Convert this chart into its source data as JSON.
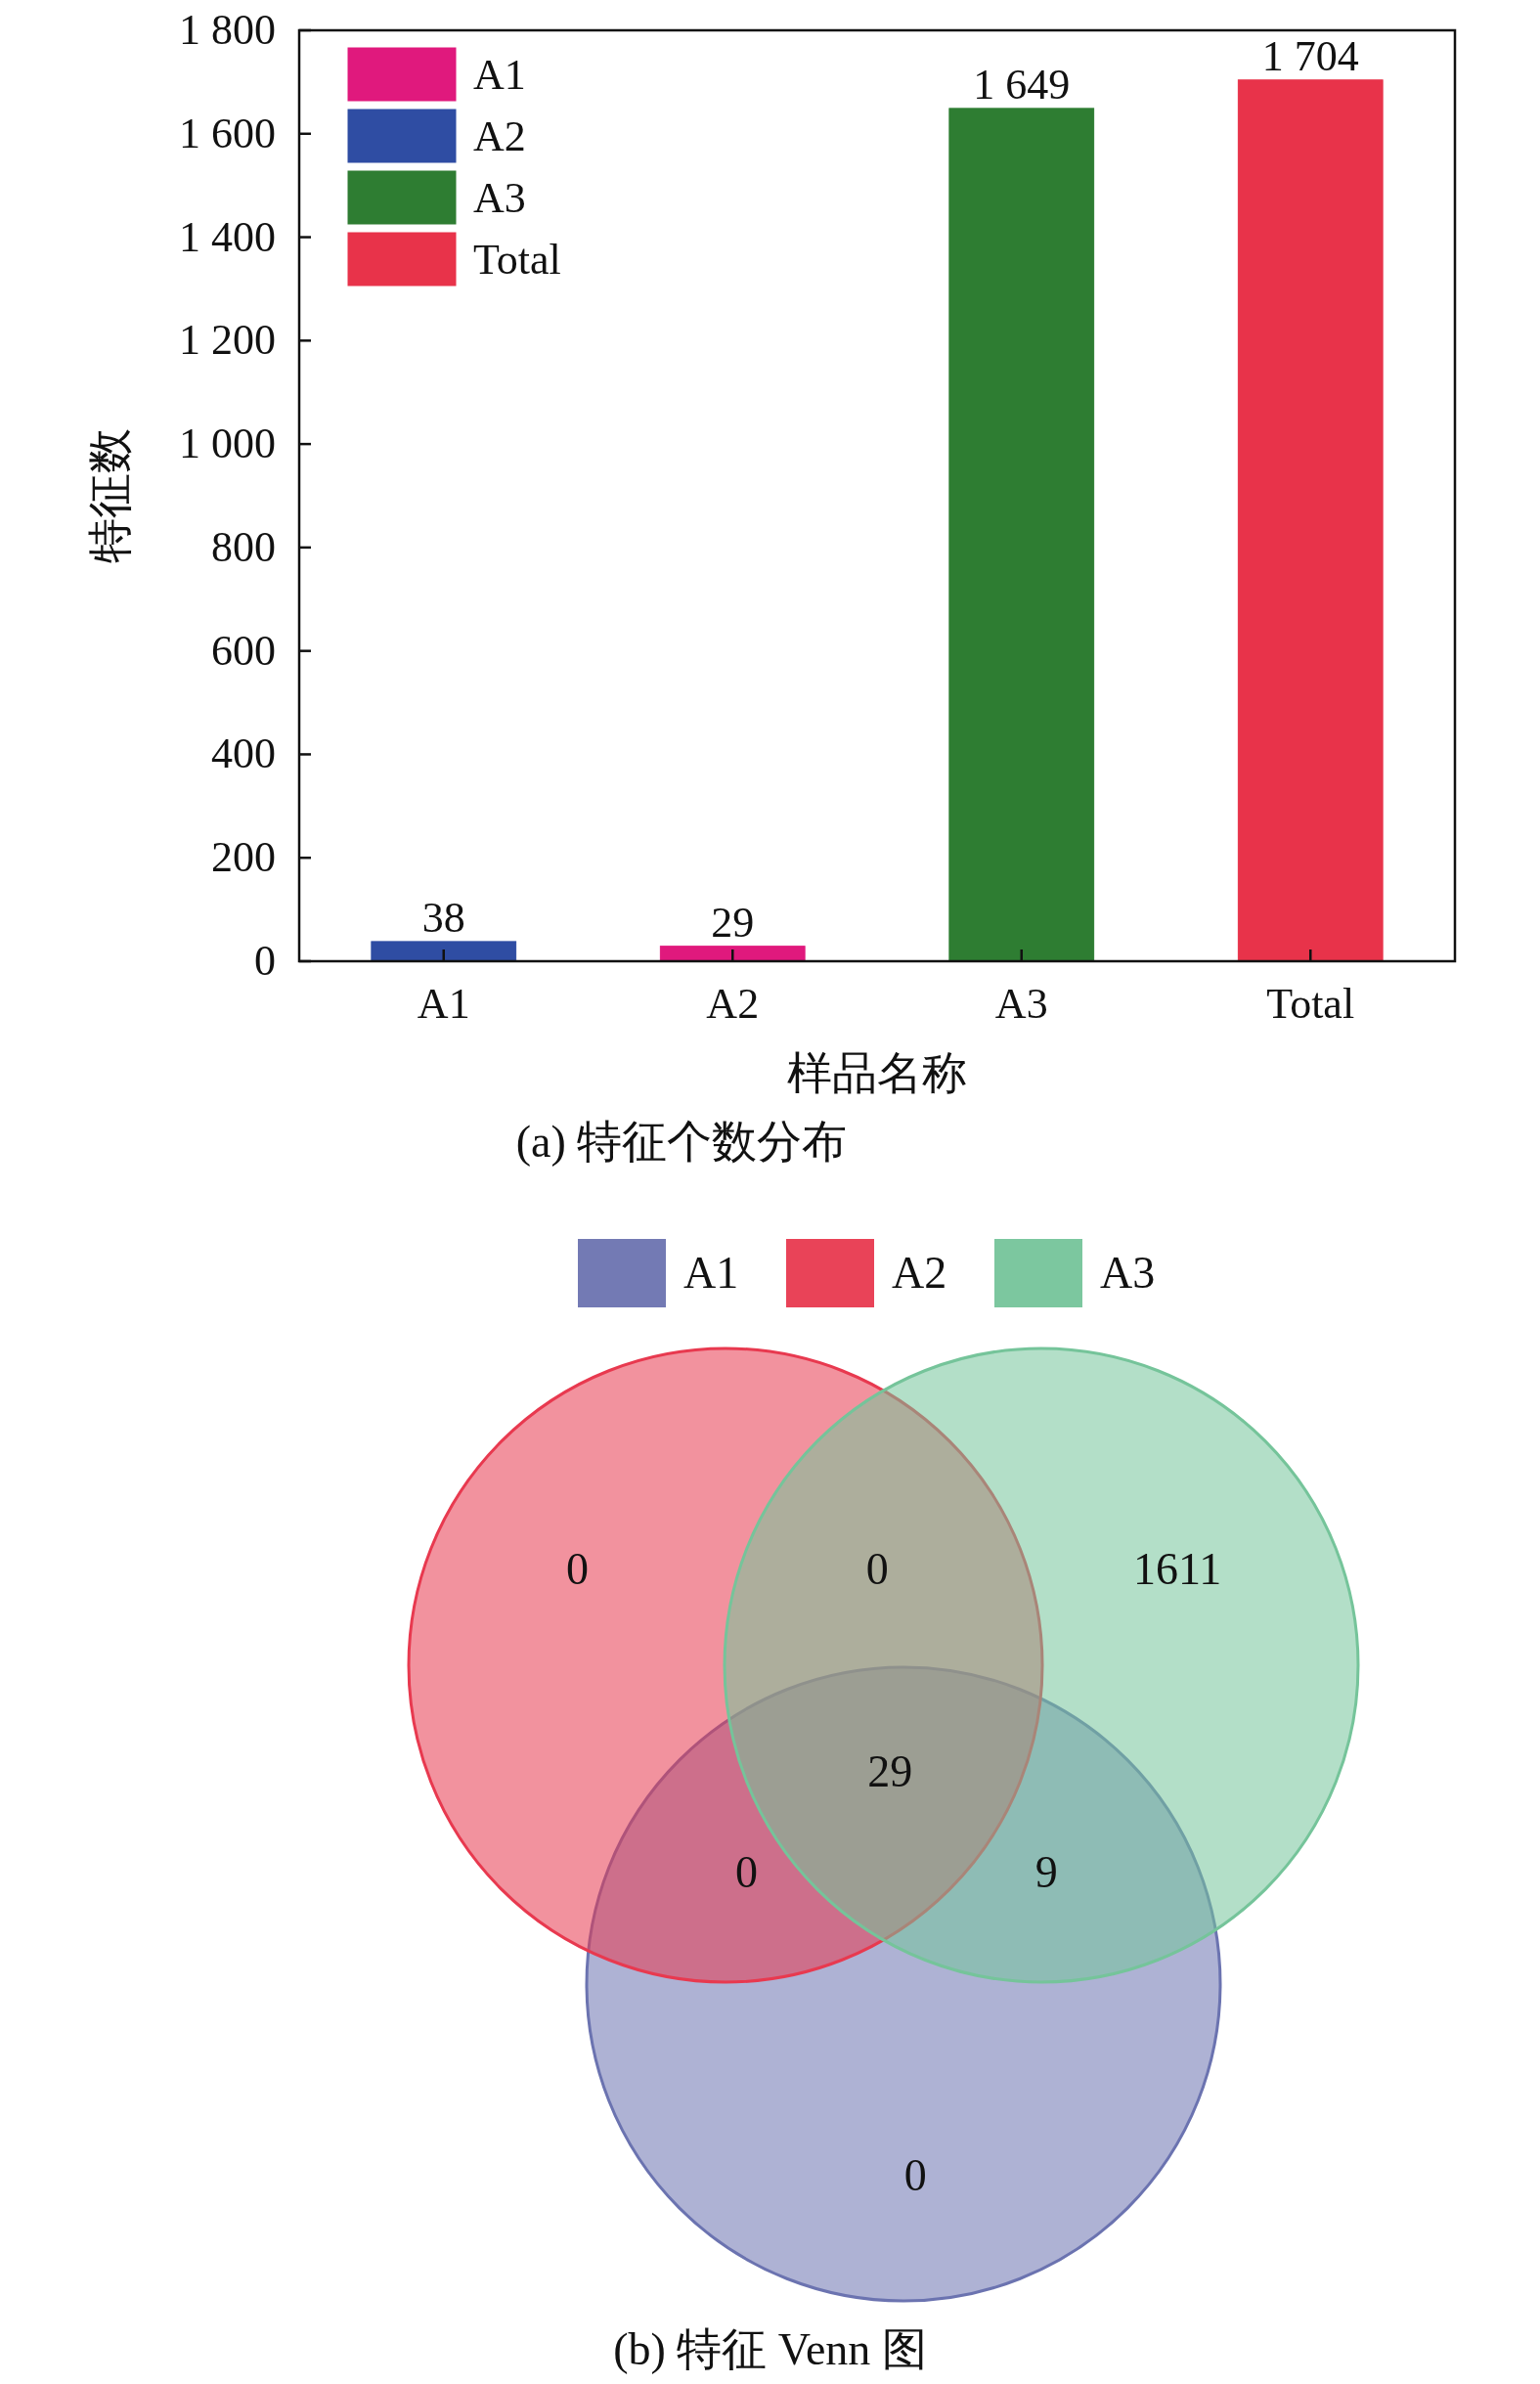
{
  "chart_data": [
    {
      "type": "bar",
      "title": "(a) 特征个数分布",
      "xlabel": "样品名称",
      "ylabel": "特征数",
      "categories": [
        "A1",
        "A2",
        "A3",
        "Total"
      ],
      "series": [
        {
          "name": "A1",
          "color": "#e0197d",
          "values": [
            null,
            29,
            null,
            null
          ],
          "value_labels": [
            null,
            "29",
            null,
            null
          ]
        },
        {
          "name": "A2",
          "color": "#2f4da3",
          "values": [
            38,
            null,
            null,
            null
          ],
          "value_labels": [
            "38",
            null,
            null,
            null
          ]
        },
        {
          "name": "A3",
          "color": "#2e7d32",
          "values": [
            null,
            null,
            1649,
            null
          ],
          "value_labels": [
            null,
            null,
            "1 649",
            null
          ]
        },
        {
          "name": "Total",
          "color": "#e8334a",
          "values": [
            null,
            null,
            null,
            1704
          ],
          "value_labels": [
            null,
            null,
            null,
            "1 704"
          ]
        }
      ],
      "ylim": [
        0,
        1800
      ],
      "yticks": [
        0,
        200,
        400,
        600,
        800,
        {
          "value": 1000,
          "label": "1 000"
        },
        {
          "value": 1200,
          "label": "1 200"
        },
        {
          "value": 1400,
          "label": "1 400"
        },
        {
          "value": 1600,
          "label": "1 600"
        },
        {
          "value": 1800,
          "label": "1 800"
        }
      ],
      "legend": "top left"
    },
    {
      "type": "other",
      "title": "(b) 特征 Venn 图",
      "annotations": [
        "0",
        "0",
        "1611",
        "29",
        "0",
        "9",
        "0"
      ],
      "series": [
        {
          "name": "A1",
          "color": "#6b73b0"
        },
        {
          "name": "A2",
          "color": "#e8394f"
        },
        {
          "name": "A3",
          "color": "#75c49a"
        }
      ],
      "legend": "top"
    }
  ]
}
